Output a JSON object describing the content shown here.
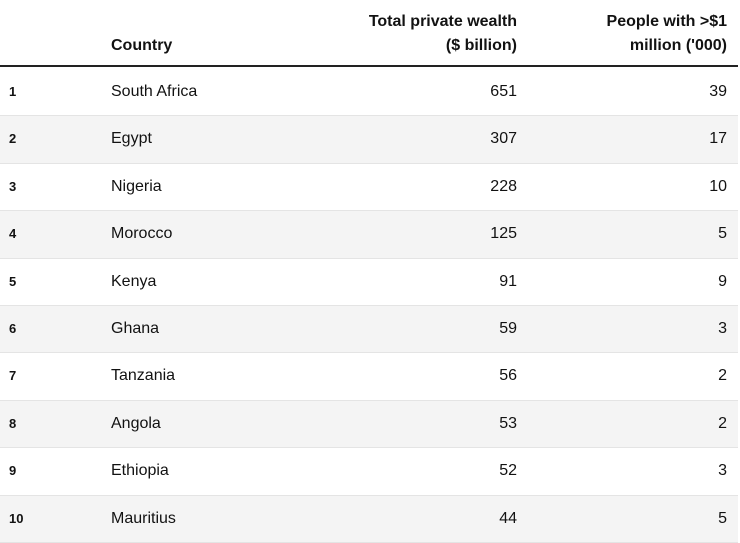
{
  "chart_data": {
    "type": "table",
    "columns": {
      "rank": "",
      "country": "Country",
      "wealth_line1": "Total private wealth",
      "wealth_line2": "($ billion)",
      "people_line1": "People with >$1",
      "people_line2": "million ('000)"
    },
    "rows": [
      {
        "rank": "1",
        "country": "South Africa",
        "wealth": "651",
        "people": "39"
      },
      {
        "rank": "2",
        "country": "Egypt",
        "wealth": "307",
        "people": "17"
      },
      {
        "rank": "3",
        "country": "Nigeria",
        "wealth": "228",
        "people": "10"
      },
      {
        "rank": "4",
        "country": "Morocco",
        "wealth": "125",
        "people": "5"
      },
      {
        "rank": "5",
        "country": "Kenya",
        "wealth": "91",
        "people": "9"
      },
      {
        "rank": "6",
        "country": "Ghana",
        "wealth": "59",
        "people": "3"
      },
      {
        "rank": "7",
        "country": "Tanzania",
        "wealth": "56",
        "people": "2"
      },
      {
        "rank": "8",
        "country": "Angola",
        "wealth": "53",
        "people": "2"
      },
      {
        "rank": "9",
        "country": "Ethiopia",
        "wealth": "52",
        "people": "3"
      },
      {
        "rank": "10",
        "country": "Mauritius",
        "wealth": "44",
        "people": "5"
      }
    ]
  }
}
